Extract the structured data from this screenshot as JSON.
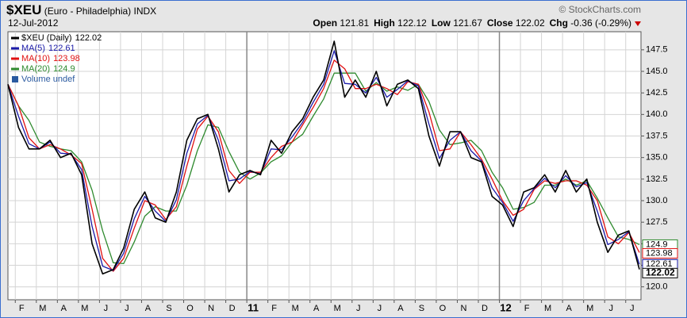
{
  "header": {
    "symbol": "$XEU",
    "name": "(Euro - Philadelphia)",
    "exchange": "INDX",
    "copyright": "© StockCharts.com",
    "date": "12-Jul-2012",
    "quote": [
      {
        "label": "Open",
        "value": "121.81"
      },
      {
        "label": "High",
        "value": "122.12"
      },
      {
        "label": "Low",
        "value": "121.67"
      },
      {
        "label": "Close",
        "value": "122.02"
      },
      {
        "label": "Chg",
        "value": "-0.36 (-0.29%)"
      }
    ]
  },
  "chart_data": {
    "type": "line",
    "categories": [
      null,
      "F",
      null,
      "M",
      null,
      "A",
      null,
      "M",
      null,
      "J",
      null,
      "J",
      null,
      "A",
      null,
      "S",
      null,
      "O",
      null,
      "N",
      null,
      "D",
      null,
      "11",
      null,
      "F",
      null,
      "M",
      null,
      "A",
      null,
      "M",
      null,
      "J",
      null,
      "J",
      null,
      "A",
      null,
      "S",
      null,
      "O",
      null,
      "N",
      null,
      "D",
      null,
      "12",
      null,
      "F",
      null,
      "M",
      null,
      "A",
      null,
      "M",
      null,
      "J",
      null,
      "J",
      null
    ],
    "series": [
      {
        "name": "$XEU (Daily)",
        "legend_value": 122.02,
        "color": "#000000",
        "values": [
          143.5,
          138.5,
          136,
          136,
          137,
          135,
          135.5,
          133,
          125,
          121.5,
          122,
          124.5,
          129,
          131,
          128,
          127.5,
          131,
          137,
          139.5,
          140,
          136,
          131,
          133,
          133.5,
          133,
          137,
          135.5,
          138,
          139.5,
          142,
          144,
          148.5,
          142,
          144,
          142,
          145,
          141,
          143.5,
          144,
          143,
          137.5,
          134,
          138,
          138,
          135,
          134.5,
          130.5,
          129.5,
          127,
          131,
          131.5,
          133,
          131,
          133.5,
          131,
          132.5,
          127.5,
          124,
          126,
          126.5,
          122.02
        ]
      },
      {
        "name": "MA(5)",
        "legend_value": 122.61,
        "color": "#1a1aa8",
        "values": [
          143.5,
          139.8,
          136.6,
          136,
          136.8,
          135.5,
          135.4,
          133.6,
          127,
          122.4,
          121.9,
          123.9,
          127.9,
          130.5,
          128.8,
          127.6,
          130.1,
          135.5,
          138.9,
          139.9,
          137,
          132.3,
          132.5,
          133.4,
          133.1,
          136,
          135.9,
          137.4,
          139.1,
          141.4,
          143.5,
          147.4,
          143.6,
          143.5,
          142.5,
          144.3,
          142,
          142.9,
          143.9,
          143.3,
          138.9,
          134.9,
          137,
          138,
          135.8,
          134.6,
          131.5,
          129.8,
          127.6,
          130,
          131.4,
          132.6,
          131.5,
          132.9,
          131.6,
          132.1,
          128.8,
          124.9,
          125.5,
          126.4,
          122.61
        ]
      },
      {
        "name": "MA(10)",
        "legend_value": 123.98,
        "color": "#e01010",
        "values": [
          143.5,
          141,
          137.3,
          136,
          136.5,
          136,
          135.3,
          134.3,
          129,
          123.3,
          121.8,
          123.3,
          126.8,
          130,
          129.5,
          127.8,
          129.3,
          134,
          138.3,
          139.8,
          138,
          133.5,
          132,
          133.3,
          133.3,
          135,
          136.3,
          136.8,
          138.8,
          140.8,
          143,
          146.3,
          145.3,
          143,
          143,
          143.5,
          143,
          142.3,
          143.8,
          143.5,
          140.3,
          135.8,
          136,
          138,
          136.5,
          134.8,
          132.5,
          130,
          128.3,
          129,
          131.3,
          132.3,
          132,
          132.3,
          132.3,
          131.8,
          130,
          125.8,
          125,
          126.3,
          123.98
        ]
      },
      {
        "name": "MA(20)",
        "legend_value": 124.9,
        "color": "#2e8a2e",
        "values": [
          143.5,
          141,
          139.3,
          136.8,
          136.3,
          136,
          135.8,
          134.5,
          131.2,
          126.5,
          122.8,
          122.7,
          125.2,
          128.2,
          129.3,
          128.8,
          128.8,
          131.8,
          135.8,
          138.8,
          138.5,
          135.7,
          133.3,
          132.5,
          133.2,
          134.5,
          135.2,
          136.8,
          137.7,
          139.8,
          141.8,
          144.8,
          144.8,
          144.8,
          142.7,
          143.7,
          142.7,
          143.2,
          142.8,
          143.5,
          141.5,
          138.2,
          136.5,
          136.7,
          137,
          135.8,
          133.3,
          131.5,
          129,
          129.2,
          129.8,
          131.8,
          131.8,
          132.5,
          131.8,
          132.3,
          130.3,
          128,
          125.8,
          125.5,
          124.9
        ]
      }
    ],
    "volume_legend": "Volume undef",
    "ylim": [
      118.5,
      149.6
    ],
    "yticks": [
      {
        "value": 120,
        "label": "120.0"
      },
      {
        "value": 122.5,
        "label": "122.5"
      },
      {
        "value": 125,
        "label": "125.0"
      },
      {
        "value": 127.5,
        "label": "127.5"
      },
      {
        "value": 130,
        "label": "130.0"
      },
      {
        "value": 132.5,
        "label": "132.5"
      },
      {
        "value": 135,
        "label": "135.0"
      },
      {
        "value": 137.5,
        "label": "137.5"
      },
      {
        "value": 140,
        "label": "140.0"
      },
      {
        "value": 142.5,
        "label": "142.5"
      },
      {
        "value": 145,
        "label": "145.0"
      },
      {
        "value": 147.5,
        "label": "147.5"
      }
    ],
    "grid": true
  }
}
